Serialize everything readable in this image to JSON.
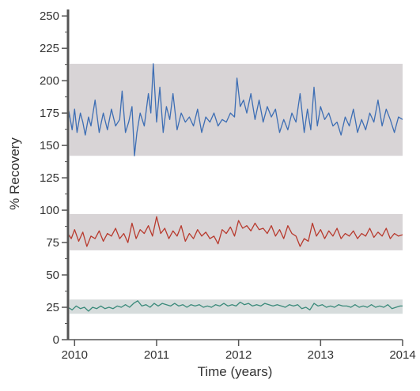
{
  "chart_data": {
    "type": "line",
    "title": "",
    "xlabel": "Time (years)",
    "ylabel": "% Recovery",
    "xlim": [
      2009.92,
      2014.0
    ],
    "ylim": [
      0,
      255
    ],
    "x_ticks": [
      {
        "value": 2010,
        "label": "2010"
      },
      {
        "value": 2011,
        "label": "2011"
      },
      {
        "value": 2012,
        "label": "2012"
      },
      {
        "value": 2013,
        "label": "2013"
      },
      {
        "value": 2014,
        "label": "2014"
      }
    ],
    "y_ticks": [
      {
        "value": 0,
        "label": "0"
      },
      {
        "value": 25,
        "label": "25"
      },
      {
        "value": 50,
        "label": "50"
      },
      {
        "value": 75,
        "label": "75"
      },
      {
        "value": 100,
        "label": "100"
      },
      {
        "value": 125,
        "label": "125"
      },
      {
        "value": 150,
        "label": "150"
      },
      {
        "value": 175,
        "label": "175"
      },
      {
        "value": 200,
        "label": "200"
      },
      {
        "value": 225,
        "label": "225"
      },
      {
        "value": 250,
        "label": "250"
      }
    ],
    "grid": false,
    "bands": [
      {
        "ymin": 142,
        "ymax": 213,
        "color": "#d8d4d6"
      },
      {
        "ymin": 69,
        "ymax": 97,
        "color": "#d8d4d6"
      },
      {
        "ymin": 20,
        "ymax": 31,
        "color": "#d6dcdc"
      }
    ],
    "series": [
      {
        "color": "#3d6eb4",
        "x": [
          2009.92,
          2009.97,
          2010.0,
          2010.03,
          2010.07,
          2010.1,
          2010.13,
          2010.17,
          2010.2,
          2010.25,
          2010.3,
          2010.35,
          2010.4,
          2010.45,
          2010.5,
          2010.55,
          2010.58,
          2010.62,
          2010.66,
          2010.7,
          2010.73,
          2010.76,
          2010.8,
          2010.85,
          2010.9,
          2010.93,
          2010.96,
          2011.0,
          2011.04,
          2011.08,
          2011.12,
          2011.16,
          2011.2,
          2011.25,
          2011.3,
          2011.35,
          2011.4,
          2011.45,
          2011.5,
          2011.55,
          2011.6,
          2011.65,
          2011.7,
          2011.75,
          2011.8,
          2011.85,
          2011.9,
          2011.95,
          2011.98,
          2012.02,
          2012.06,
          2012.1,
          2012.15,
          2012.2,
          2012.25,
          2012.3,
          2012.35,
          2012.4,
          2012.45,
          2012.5,
          2012.55,
          2012.6,
          2012.65,
          2012.7,
          2012.75,
          2012.8,
          2012.84,
          2012.88,
          2012.92,
          2012.96,
          2013.0,
          2013.05,
          2013.1,
          2013.15,
          2013.2,
          2013.25,
          2013.3,
          2013.35,
          2013.4,
          2013.45,
          2013.5,
          2013.55,
          2013.6,
          2013.65,
          2013.7,
          2013.75,
          2013.8,
          2013.85,
          2013.9,
          2013.95,
          2014.0
        ],
        "values": [
          180,
          162,
          178,
          160,
          175,
          168,
          158,
          172,
          165,
          185,
          160,
          175,
          162,
          178,
          165,
          170,
          192,
          160,
          168,
          180,
          142,
          160,
          175,
          165,
          190,
          175,
          213,
          168,
          195,
          160,
          180,
          170,
          190,
          162,
          175,
          168,
          172,
          165,
          178,
          160,
          172,
          168,
          175,
          165,
          170,
          168,
          175,
          172,
          202,
          180,
          185,
          175,
          190,
          170,
          185,
          168,
          180,
          172,
          178,
          160,
          170,
          162,
          175,
          168,
          190,
          160,
          178,
          162,
          195,
          165,
          180,
          170,
          175,
          165,
          168,
          158,
          172,
          165,
          178,
          160,
          170,
          162,
          175,
          168,
          185,
          165,
          178,
          170,
          160,
          172,
          170
        ]
      },
      {
        "color": "#b83a2e",
        "x": [
          2009.92,
          2009.96,
          2010.0,
          2010.05,
          2010.1,
          2010.15,
          2010.2,
          2010.25,
          2010.3,
          2010.35,
          2010.4,
          2010.45,
          2010.5,
          2010.55,
          2010.6,
          2010.65,
          2010.7,
          2010.75,
          2010.8,
          2010.85,
          2010.9,
          2010.95,
          2011.0,
          2011.05,
          2011.1,
          2011.15,
          2011.2,
          2011.25,
          2011.3,
          2011.35,
          2011.4,
          2011.45,
          2011.5,
          2011.55,
          2011.6,
          2011.65,
          2011.7,
          2011.75,
          2011.8,
          2011.85,
          2011.9,
          2011.95,
          2012.0,
          2012.05,
          2012.1,
          2012.15,
          2012.2,
          2012.25,
          2012.3,
          2012.35,
          2012.4,
          2012.45,
          2012.5,
          2012.55,
          2012.6,
          2012.65,
          2012.7,
          2012.75,
          2012.8,
          2012.85,
          2012.9,
          2012.95,
          2013.0,
          2013.05,
          2013.1,
          2013.15,
          2013.2,
          2013.25,
          2013.3,
          2013.35,
          2013.4,
          2013.45,
          2013.5,
          2013.55,
          2013.6,
          2013.65,
          2013.7,
          2013.75,
          2013.8,
          2013.85,
          2013.9,
          2013.95,
          2014.0
        ],
        "values": [
          82,
          78,
          85,
          76,
          83,
          72,
          80,
          78,
          84,
          76,
          82,
          80,
          86,
          78,
          82,
          75,
          90,
          78,
          85,
          82,
          88,
          80,
          95,
          82,
          86,
          78,
          84,
          80,
          88,
          76,
          82,
          78,
          85,
          80,
          83,
          78,
          80,
          74,
          85,
          82,
          87,
          80,
          92,
          86,
          88,
          84,
          90,
          85,
          86,
          82,
          88,
          80,
          85,
          78,
          88,
          82,
          80,
          72,
          78,
          76,
          90,
          80,
          85,
          78,
          84,
          80,
          86,
          78,
          82,
          80,
          84,
          78,
          82,
          80,
          86,
          79,
          83,
          80,
          86,
          78,
          82,
          80,
          81
        ]
      },
      {
        "color": "#3a8a7a",
        "x": [
          2009.92,
          2009.97,
          2010.02,
          2010.07,
          2010.12,
          2010.17,
          2010.22,
          2010.27,
          2010.32,
          2010.37,
          2010.42,
          2010.47,
          2010.52,
          2010.57,
          2010.62,
          2010.67,
          2010.72,
          2010.77,
          2010.82,
          2010.87,
          2010.92,
          2010.97,
          2011.02,
          2011.07,
          2011.12,
          2011.17,
          2011.22,
          2011.27,
          2011.32,
          2011.37,
          2011.42,
          2011.47,
          2011.52,
          2011.57,
          2011.62,
          2011.67,
          2011.72,
          2011.77,
          2011.82,
          2011.87,
          2011.92,
          2011.97,
          2012.02,
          2012.07,
          2012.12,
          2012.17,
          2012.22,
          2012.27,
          2012.32,
          2012.37,
          2012.42,
          2012.47,
          2012.52,
          2012.57,
          2012.62,
          2012.67,
          2012.72,
          2012.77,
          2012.82,
          2012.87,
          2012.92,
          2012.97,
          2013.02,
          2013.07,
          2013.12,
          2013.17,
          2013.22,
          2013.27,
          2013.32,
          2013.37,
          2013.42,
          2013.47,
          2013.52,
          2013.57,
          2013.62,
          2013.67,
          2013.72,
          2013.77,
          2013.82,
          2013.87,
          2013.92,
          2013.97,
          2014.0
        ],
        "values": [
          25,
          23,
          26,
          24,
          25,
          22,
          25,
          24,
          26,
          24,
          25,
          24,
          26,
          25,
          27,
          25,
          28,
          30,
          26,
          27,
          25,
          28,
          26,
          28,
          27,
          26,
          28,
          26,
          27,
          25,
          27,
          26,
          27,
          25,
          26,
          25,
          27,
          26,
          28,
          26,
          27,
          26,
          29,
          27,
          28,
          26,
          27,
          26,
          28,
          27,
          26,
          27,
          26,
          25,
          27,
          26,
          27,
          24,
          25,
          23,
          28,
          26,
          27,
          25,
          26,
          25,
          27,
          26,
          26,
          25,
          27,
          25,
          26,
          25,
          27,
          25,
          26,
          25,
          27,
          24,
          25,
          26,
          26
        ]
      }
    ]
  }
}
